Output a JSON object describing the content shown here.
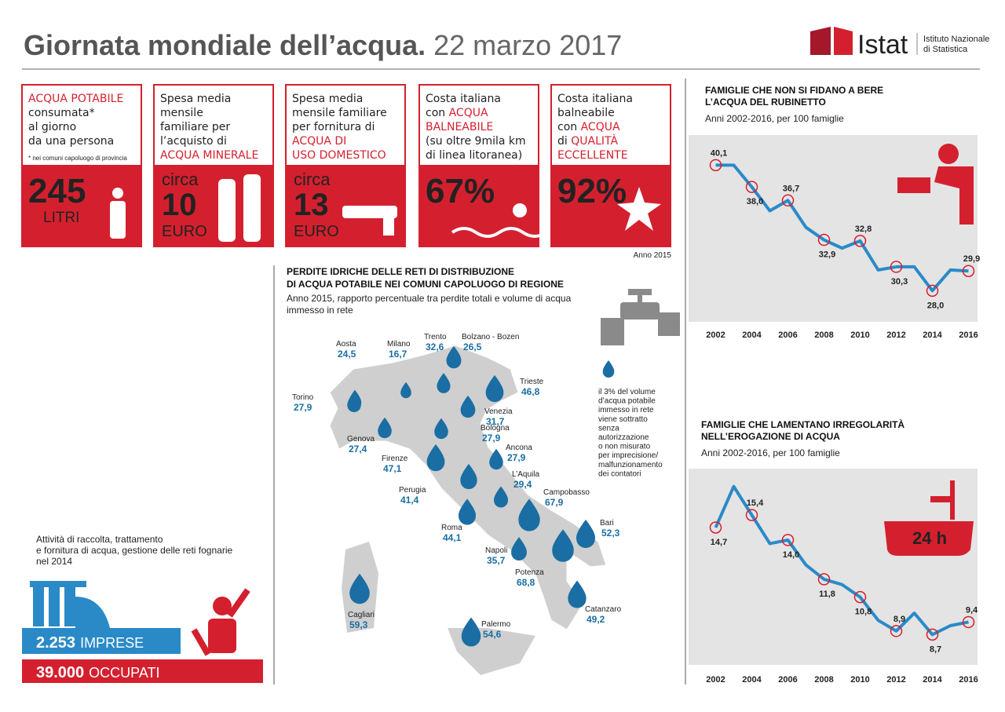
{
  "header": {
    "title": "Giornata mondiale dell’acqua.",
    "date": "22 marzo 2017",
    "logo": "Istat",
    "institute": [
      "Istituto Nazionale",
      "di Statistica"
    ]
  },
  "cards": [
    {
      "lines": [
        [
          "ACQUA POTABILE"
        ],
        [
          "consumata*"
        ],
        [
          "al giorno"
        ],
        [
          "da una persona"
        ]
      ],
      "note": "* nei comuni capoluogo di provincia",
      "figure": "245",
      "unit": "LITRI"
    },
    {
      "lines": [
        [
          "Spesa media"
        ],
        [
          "mensile"
        ],
        [
          "familiare per"
        ],
        [
          "l’acquisto di"
        ],
        [
          "ACQUA MINERALE"
        ]
      ],
      "prefix": "circa",
      "figure": "10",
      "unit": "EURO"
    },
    {
      "lines": [
        [
          "Spesa media"
        ],
        [
          "mensile familiare"
        ],
        [
          "per fornitura di"
        ],
        [
          "ACQUA DI"
        ],
        [
          "USO DOMESTICO"
        ]
      ],
      "prefix": "circa",
      "figure": "13",
      "unit": "EURO"
    },
    {
      "lines": [
        [
          "Costa italiana"
        ],
        [
          "con ",
          "ACQUA"
        ],
        [
          "BALNEABILE"
        ],
        [
          "(su oltre 9mila km"
        ],
        [
          "di linea litoranea)"
        ]
      ],
      "figure": "67%"
    },
    {
      "lines": [
        [
          "Costa italiana"
        ],
        [
          "balneabile"
        ],
        [
          "con ",
          "ACQUA"
        ],
        [
          "di ",
          "QUALITÀ"
        ],
        [
          "ECCELLENTE"
        ]
      ],
      "figure": "92%"
    }
  ],
  "cards_note": "Anno 2015",
  "map": {
    "title": [
      "PERDITE IDRICHE DELLE RETI DI DISTRIBUZIONE",
      "DI ACQUA POTABILE NEI COMUNI CAPOLUOGO DI REGIONE"
    ],
    "subtitle": [
      "Anno 2015, rapporto percentuale tra perdite totali e volume di acqua",
      "immesso in rete"
    ],
    "cities": [
      {
        "name": "Aosta",
        "value": 24.5,
        "value_label": "24,5"
      },
      {
        "name": "Milano",
        "value": 16.7,
        "value_label": "16,7"
      },
      {
        "name": "Trento",
        "value": 32.6,
        "value_label": "32,6"
      },
      {
        "name": "Bolzano - Bozen",
        "value": 26.5,
        "value_label": "26,5"
      },
      {
        "name": "Trieste",
        "value": 46.8,
        "value_label": "46,8"
      },
      {
        "name": "Torino",
        "value": 27.9,
        "value_label": "27,9"
      },
      {
        "name": "Venezia",
        "value": 31.7,
        "value_label": "31,7"
      },
      {
        "name": "Genova",
        "value": 27.4,
        "value_label": "27,4"
      },
      {
        "name": "Bologna",
        "value": 27.9,
        "value_label": "27,9"
      },
      {
        "name": "Ancona",
        "value": 27.9,
        "value_label": "27,9"
      },
      {
        "name": "Firenze",
        "value": 47.1,
        "value_label": "47,1"
      },
      {
        "name": "L’Aquila",
        "value": 29.4,
        "value_label": "29,4"
      },
      {
        "name": "Perugia",
        "value": 41.4,
        "value_label": "41,4"
      },
      {
        "name": "Campobasso",
        "value": 67.9,
        "value_label": "67,9"
      },
      {
        "name": "Roma",
        "value": 44.1,
        "value_label": "44,1"
      },
      {
        "name": "Bari",
        "value": 52.3,
        "value_label": "52,3"
      },
      {
        "name": "Napoli",
        "value": 35.7,
        "value_label": "35,7"
      },
      {
        "name": "Potenza",
        "value": 68.8,
        "value_label": "68,8"
      },
      {
        "name": "Cagliari",
        "value": 59.3,
        "value_label": "59,3"
      },
      {
        "name": "Catanzaro",
        "value": 49.2,
        "value_label": "49,2"
      },
      {
        "name": "Palermo",
        "value": 54.6,
        "value_label": "54,6"
      }
    ],
    "note": [
      "il 3% del volume",
      "d’acqua potabile",
      "immesso in rete",
      "viene sottratto",
      "senza",
      "autorizzazione",
      "o non misurato",
      "per imprecisione/",
      "malfunzionamento",
      "dei contatori"
    ]
  },
  "business": {
    "text": [
      "Attività di raccolta, trattamento",
      "e fornitura di acqua, gestione delle reti fognarie",
      "nel 2014"
    ],
    "firms": "2.253",
    "firms_label": "IMPRESE",
    "employees": "39.000",
    "employees_label": "OCCUPATI"
  },
  "chart_data": [
    {
      "type": "line",
      "title": [
        "FAMIGLIE CHE NON SI FIDANO A BERE",
        "L’ACQUA DEL RUBINETTO"
      ],
      "subtitle": "Anni 2002-2016, per 100 famiglie",
      "x": [
        2002,
        2003,
        2004,
        2005,
        2006,
        2007,
        2008,
        2009,
        2010,
        2011,
        2012,
        2013,
        2014,
        2015,
        2016
      ],
      "values": [
        40.1,
        40.1,
        38.0,
        35.7,
        36.7,
        34.1,
        32.9,
        32.1,
        32.8,
        30.0,
        30.3,
        30.3,
        28.0,
        30.0,
        29.9
      ],
      "value_labels": [
        "40,1",
        null,
        "38,0",
        null,
        "36,7",
        null,
        "32,9",
        null,
        "32,8",
        null,
        "30,3",
        null,
        "28,0",
        null,
        "29,9"
      ],
      "color": "#2a8ac8",
      "xlim": [
        2000.5,
        2016.5
      ],
      "ylim": [
        25,
        43
      ],
      "xticks": [
        2002,
        2004,
        2006,
        2008,
        2010,
        2012,
        2014,
        2016
      ]
    },
    {
      "type": "line",
      "title": [
        "FAMIGLIE CHE LAMENTANO IRREGOLARITÀ",
        "NELL’EROGAZIONE DI ACQUA"
      ],
      "subtitle": "Anni 2002-2016, per 100 famiglie",
      "annotation": "24 h",
      "x": [
        2002,
        2003,
        2004,
        2005,
        2006,
        2007,
        2008,
        2009,
        2010,
        2011,
        2012,
        2013,
        2014,
        2015,
        2016
      ],
      "values": [
        14.7,
        17.0,
        15.4,
        13.8,
        14.0,
        12.6,
        11.8,
        11.5,
        10.8,
        9.5,
        8.9,
        9.9,
        8.7,
        9.2,
        9.4
      ],
      "value_labels": [
        "14,7",
        null,
        "15,4",
        null,
        "14,0",
        null,
        "11,8",
        null,
        "10,8",
        null,
        "8,9",
        null,
        "8,7",
        null,
        "9,4"
      ],
      "color": "#2a8ac8",
      "xlim": [
        2000.5,
        2016.5
      ],
      "ylim": [
        7,
        18
      ],
      "xticks": [
        2002,
        2004,
        2006,
        2008,
        2010,
        2012,
        2014,
        2016
      ]
    }
  ]
}
